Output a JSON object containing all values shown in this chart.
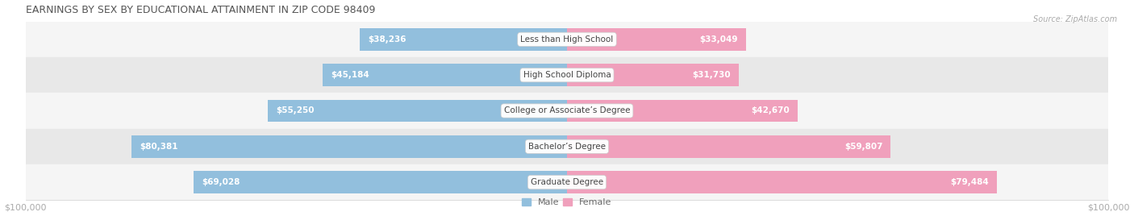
{
  "title": "EARNINGS BY SEX BY EDUCATIONAL ATTAINMENT IN ZIP CODE 98409",
  "source": "Source: ZipAtlas.com",
  "categories": [
    "Less than High School",
    "High School Diploma",
    "College or Associate’s Degree",
    "Bachelor’s Degree",
    "Graduate Degree"
  ],
  "male_values": [
    38236,
    45184,
    55250,
    80381,
    69028
  ],
  "female_values": [
    33049,
    31730,
    42670,
    59807,
    79484
  ],
  "male_color": "#92bfdd",
  "female_color": "#f0a0bc",
  "max_val": 100000,
  "bar_height": 0.62,
  "background_color": "#ffffff",
  "row_colors": [
    "#f5f5f5",
    "#e8e8e8"
  ],
  "axis_label_color": "#aaaaaa",
  "title_color": "#555555",
  "outside_label_color": "#999999",
  "inside_label_color": "#ffffff",
  "threshold_inside": 0.2
}
